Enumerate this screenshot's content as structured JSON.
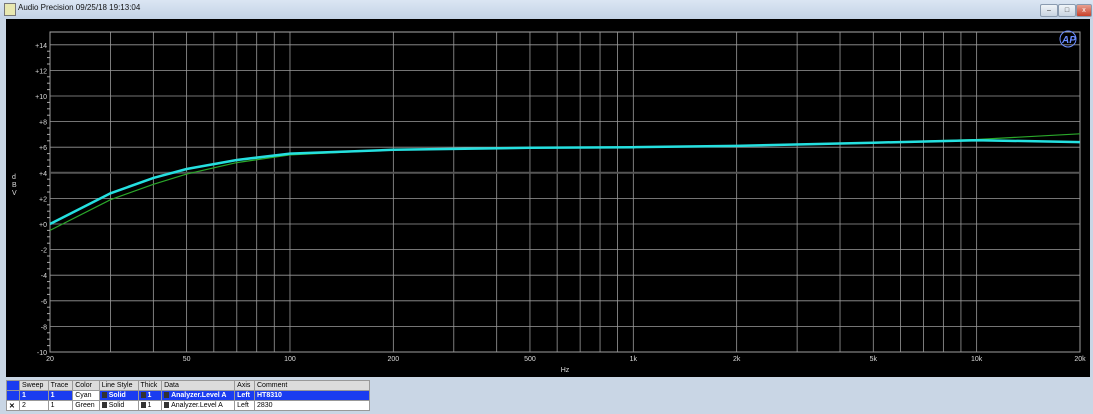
{
  "window": {
    "title": "Audio Precision  09/25/18 19:13:04",
    "logo": "AP"
  },
  "chart_data": {
    "type": "line",
    "xlabel": "Hz",
    "ylabel": "d B V",
    "xscale": "log",
    "xlim": [
      20,
      20000
    ],
    "ylim": [
      -10,
      15
    ],
    "xticks": [
      {
        "v": 20,
        "l": "20"
      },
      {
        "v": 50,
        "l": "50"
      },
      {
        "v": 100,
        "l": "100"
      },
      {
        "v": 200,
        "l": "200"
      },
      {
        "v": 500,
        "l": "500"
      },
      {
        "v": 1000,
        "l": "1k"
      },
      {
        "v": 2000,
        "l": "2k"
      },
      {
        "v": 5000,
        "l": "5k"
      },
      {
        "v": 10000,
        "l": "10k"
      },
      {
        "v": 20000,
        "l": "20k"
      }
    ],
    "yticks": [
      {
        "v": 14,
        "l": "+14"
      },
      {
        "v": 12,
        "l": "+12"
      },
      {
        "v": 10,
        "l": "+10"
      },
      {
        "v": 8,
        "l": "+8"
      },
      {
        "v": 6,
        "l": "+6"
      },
      {
        "v": 4,
        "l": "+4"
      },
      {
        "v": 2,
        "l": "+2"
      },
      {
        "v": 0,
        "l": "+0"
      },
      {
        "v": -2,
        "l": "-2"
      },
      {
        "v": -4,
        "l": "-4"
      },
      {
        "v": -6,
        "l": "-6"
      },
      {
        "v": -8,
        "l": "-8"
      },
      {
        "v": -10,
        "l": "-10"
      }
    ],
    "grid": true,
    "series": [
      {
        "color": "#25e0e0",
        "x": [
          20,
          30,
          40,
          50,
          70,
          100,
          200,
          500,
          1000,
          2000,
          5000,
          10000,
          20000
        ],
        "y": [
          0,
          2.4,
          3.6,
          4.3,
          5.0,
          5.5,
          5.8,
          5.95,
          6.0,
          6.1,
          6.35,
          6.55,
          6.4
        ]
      },
      {
        "color": "#2aa82a",
        "x": [
          20,
          30,
          40,
          50,
          70,
          100,
          200,
          500,
          1000,
          2000,
          5000,
          10000,
          20000
        ],
        "y": [
          -0.5,
          1.9,
          3.1,
          3.9,
          4.8,
          5.4,
          5.8,
          5.95,
          6.0,
          6.1,
          6.35,
          6.6,
          7.05
        ]
      }
    ]
  },
  "table": {
    "headers": [
      "Sweep",
      "Trace",
      "Color",
      "Line Style",
      "Thick",
      "Data",
      "Axis",
      "Comment"
    ],
    "rows": [
      {
        "check": "",
        "sweep": "1",
        "trace": "1",
        "color": "Cyan",
        "style": "Solid",
        "thick": "1",
        "data": "Analyzer.Level A",
        "axis": "Left",
        "comment": "HT8310"
      },
      {
        "check": "✕",
        "sweep": "2",
        "trace": "1",
        "color": "Green",
        "style": "Solid",
        "thick": "1",
        "data": "Analyzer.Level A",
        "axis": "Left",
        "comment": "2830"
      }
    ]
  }
}
